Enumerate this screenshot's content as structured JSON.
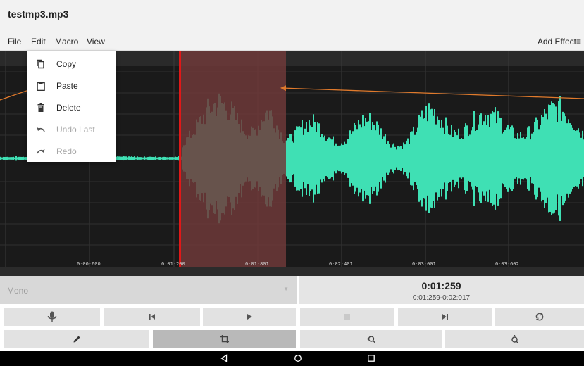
{
  "app": {
    "title": "testmp3.mp3"
  },
  "menu": {
    "file": "File",
    "edit": "Edit",
    "macro": "Macro",
    "view": "View",
    "add_effect": "Add Effect≡"
  },
  "edit_menu": {
    "items": [
      {
        "label": "Copy",
        "icon": "copy-icon",
        "enabled": true
      },
      {
        "label": "Paste",
        "icon": "paste-icon",
        "enabled": true
      },
      {
        "label": "Delete",
        "icon": "delete-icon",
        "enabled": true
      },
      {
        "label": "Undo Last",
        "icon": "undo-icon",
        "enabled": false
      },
      {
        "label": "Redo",
        "icon": "redo-icon",
        "enabled": false
      }
    ]
  },
  "timeline": {
    "ticks": [
      "0:00:600",
      "0:01:200",
      "0:01:801",
      "0:02:401",
      "0:03:001",
      "0:03:602"
    ]
  },
  "panel": {
    "channel": "Mono",
    "current_time": "0:01:259",
    "selection_range": "0:01:259-0:02:017"
  },
  "colors": {
    "waveform": "#3fe0b4",
    "selection": "#6f3a3a",
    "cursor": "#e01818",
    "background": "#1a1a1a",
    "annotation_arrow": "#e07a2c"
  }
}
